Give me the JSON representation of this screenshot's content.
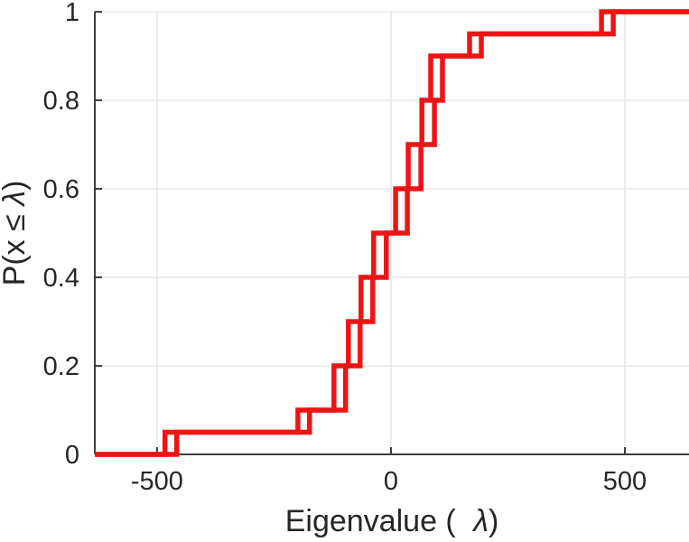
{
  "chart_data": {
    "type": "line",
    "subtype": "ecdf-stairstep",
    "title": "",
    "xlabel": {
      "pre": "Eigenvalue ( ",
      "symbol": "λ",
      "post": ")"
    },
    "ylabel": {
      "pre": "P(x ≤ ",
      "symbol": "λ",
      "post": ")"
    },
    "xlim": [
      -633,
      637
    ],
    "ylim": [
      0,
      1
    ],
    "xticks": [
      -500,
      0,
      500
    ],
    "xtick_labels": [
      "-500",
      "0",
      "500"
    ],
    "yticks": [
      0,
      0.2,
      0.4,
      0.6,
      0.8,
      1
    ],
    "ytick_labels": [
      "0",
      "0.2",
      "0.4",
      "0.6",
      "0.8",
      "1"
    ],
    "grid": true,
    "legend": null,
    "line_color": "#ee1414",
    "axis_color": "#3f3f3f",
    "text_color": "#262626",
    "grid_color": "#e8e8e8",
    "series": [
      {
        "name": "ecdf-staircase-primary",
        "jumps": [
          [
            -483,
            0.05
          ],
          [
            -199,
            0.1
          ],
          [
            -122,
            0.2
          ],
          [
            -91,
            0.3
          ],
          [
            -64,
            0.4
          ],
          [
            -37,
            0.5
          ],
          [
            10,
            0.6
          ],
          [
            37,
            0.7
          ],
          [
            66,
            0.8
          ],
          [
            85,
            0.9
          ],
          [
            168,
            0.95
          ],
          [
            450,
            1.0
          ]
        ]
      },
      {
        "name": "ecdf-staircase-secondary",
        "jumps": [
          [
            -458,
            0.05
          ],
          [
            -174,
            0.1
          ],
          [
            -97,
            0.2
          ],
          [
            -66,
            0.3
          ],
          [
            -39,
            0.4
          ],
          [
            -10,
            0.5
          ],
          [
            35,
            0.6
          ],
          [
            64,
            0.7
          ],
          [
            93,
            0.8
          ],
          [
            110,
            0.9
          ],
          [
            193,
            0.95
          ],
          [
            475,
            1.0
          ]
        ]
      }
    ]
  }
}
